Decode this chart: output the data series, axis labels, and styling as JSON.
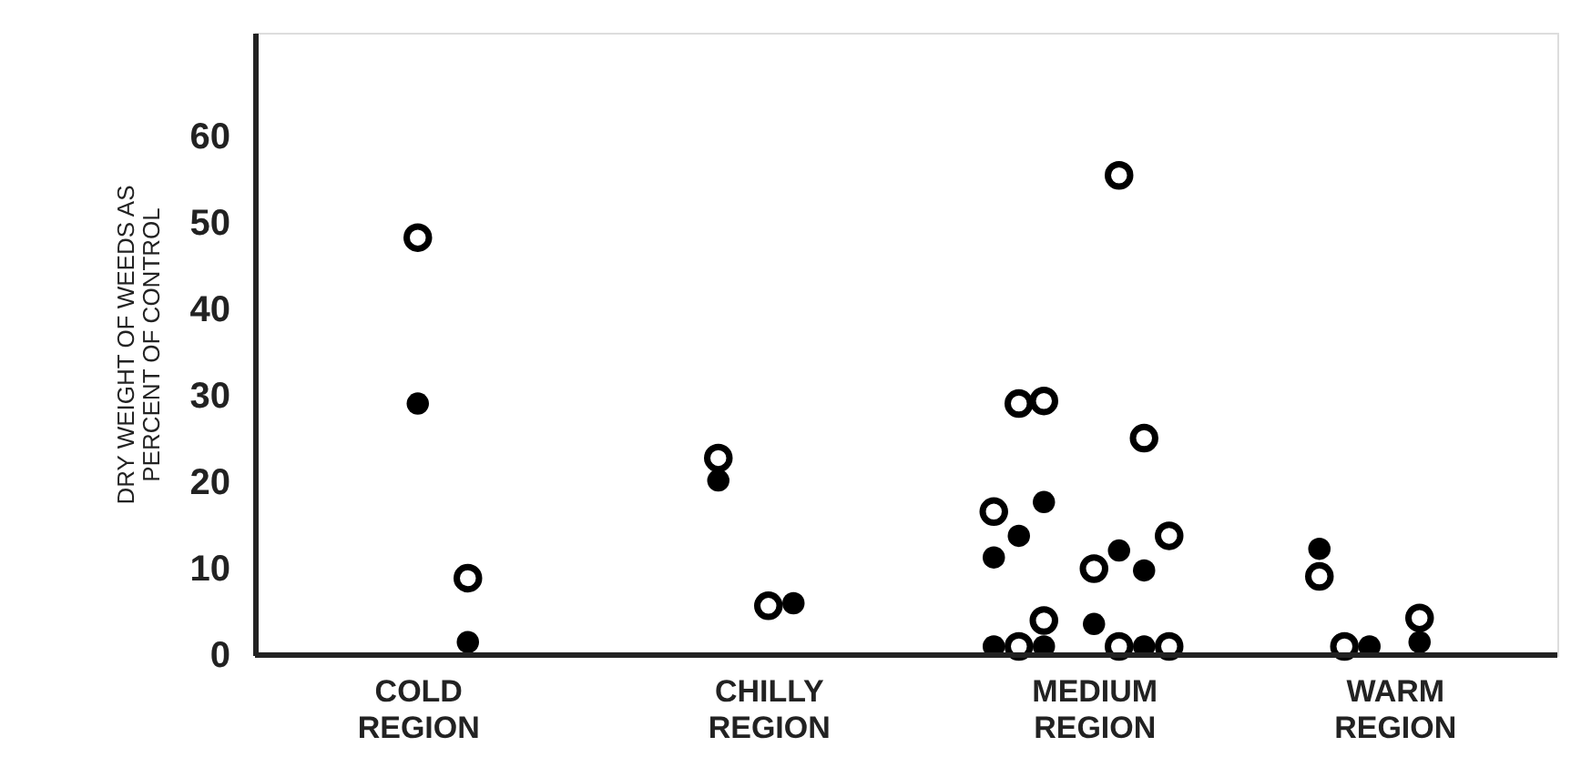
{
  "chart_data": {
    "type": "scatter",
    "ylabel": "DRY WEIGHT OF WEEDS AS\nPERCENT OF CONTROL",
    "categories": [
      null,
      null,
      null,
      null,
      null,
      null,
      "COLD\nREGION",
      null,
      null,
      null,
      null,
      null,
      null,
      null,
      null,
      null,
      null,
      null,
      null,
      null,
      "CHILLY\nREGION",
      null,
      null,
      null,
      null,
      null,
      null,
      null,
      null,
      null,
      null,
      null,
      null,
      "MEDIUM\nREGION",
      null,
      null,
      null,
      null,
      null,
      null,
      null,
      null,
      null,
      null,
      null,
      "WARM\nREGION",
      null,
      null,
      null,
      null,
      null,
      null
    ],
    "ylim": [
      0,
      72
    ],
    "yticks": [
      0,
      10,
      20,
      30,
      40,
      50,
      60
    ],
    "grid": false,
    "marker": "circle",
    "series": [
      {
        "color": "#000000",
        "values": [
          null,
          null,
          null,
          null,
          null,
          null,
          48.3,
          null,
          8.9,
          null,
          null,
          null,
          null,
          null,
          null,
          null,
          null,
          null,
          22.8,
          null,
          5.7,
          null,
          null,
          null,
          null,
          null,
          null,
          null,
          null,
          16.6,
          29.1,
          29.4,
          null,
          10.0,
          55.5,
          25.1,
          13.8,
          null,
          null,
          null,
          null,
          null,
          9.1,
          1,
          null,
          null,
          4.3,
          null,
          null,
          null,
          null,
          null
        ]
      },
      {
        "color": "#000000",
        "values": [
          null,
          null,
          null,
          null,
          null,
          null,
          29.1,
          null,
          1.5,
          null,
          null,
          null,
          null,
          null,
          null,
          null,
          null,
          null,
          20.2,
          null,
          null,
          6.0,
          null,
          null,
          null,
          null,
          null,
          null,
          null,
          11.3,
          13.8,
          17.7,
          null,
          3.6,
          12.1,
          9.8,
          null,
          null,
          null,
          null,
          null,
          null,
          12.3,
          null,
          1,
          null,
          1.5,
          null,
          null,
          null,
          null,
          null
        ]
      },
      {
        "color": "#000000",
        "values": [
          null,
          null,
          null,
          null,
          null,
          null,
          null,
          null,
          null,
          null,
          null,
          null,
          null,
          null,
          null,
          null,
          null,
          null,
          null,
          null,
          null,
          null,
          null,
          null,
          null,
          null,
          null,
          null,
          null,
          null,
          1,
          4.0,
          null,
          null,
          1,
          null,
          1,
          null,
          null,
          null,
          null,
          null,
          null,
          null,
          null,
          null,
          null,
          null,
          null,
          null,
          null,
          null
        ]
      },
      {
        "color": "#000000",
        "values": [
          null,
          null,
          null,
          null,
          null,
          null,
          null,
          null,
          null,
          null,
          null,
          null,
          null,
          null,
          null,
          null,
          null,
          null,
          null,
          null,
          null,
          null,
          null,
          null,
          null,
          null,
          null,
          null,
          null,
          1,
          null,
          1,
          null,
          null,
          null,
          1,
          null,
          null,
          null,
          null,
          null,
          null,
          null,
          null,
          null,
          null,
          null,
          null,
          null,
          null,
          null,
          null
        ]
      }
    ]
  }
}
